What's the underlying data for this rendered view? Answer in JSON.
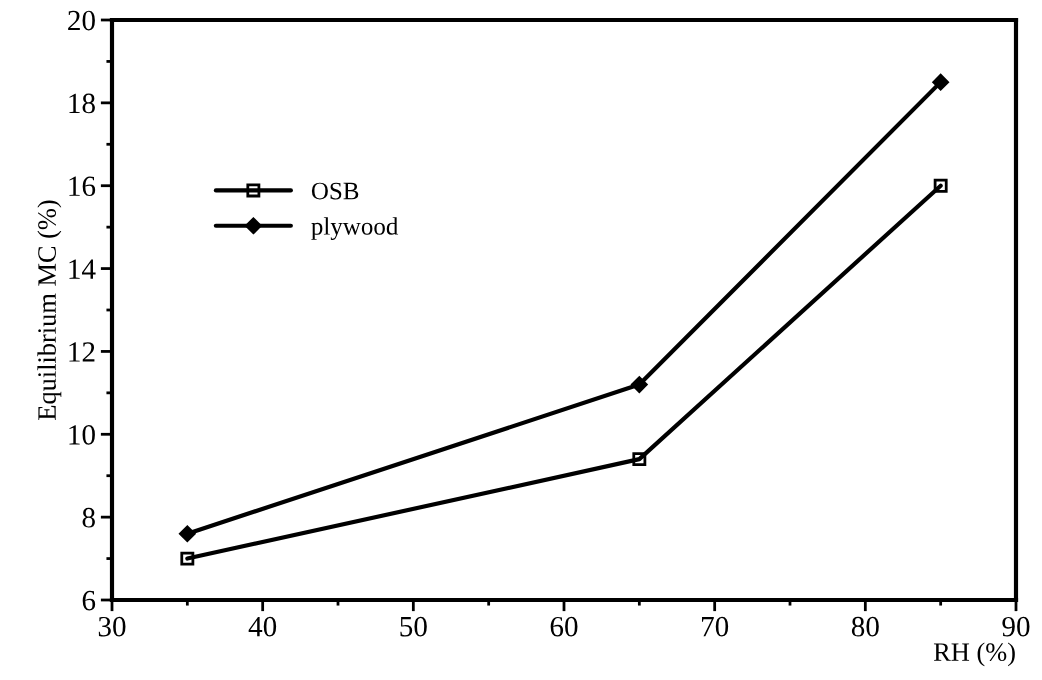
{
  "chart_data": {
    "type": "line",
    "xlabel": "RH (%)",
    "ylabel": "Equilibrium MC (%)",
    "x": [
      35,
      65,
      85
    ],
    "series": [
      {
        "name": "OSB",
        "color": "#000000",
        "marker": "square",
        "values": [
          7.0,
          9.4,
          16.0
        ]
      },
      {
        "name": "plywood",
        "color": "#000000",
        "marker": "diamond",
        "values": [
          7.6,
          11.2,
          18.5
        ]
      }
    ],
    "xlim": [
      30,
      90
    ],
    "xticks": [
      30,
      40,
      50,
      60,
      70,
      80,
      90
    ],
    "ylim": [
      6,
      20
    ],
    "yticks": [
      6,
      8,
      10,
      12,
      14,
      16,
      18,
      20
    ],
    "grid": false,
    "legend": "top left",
    "line_style": "solid"
  }
}
